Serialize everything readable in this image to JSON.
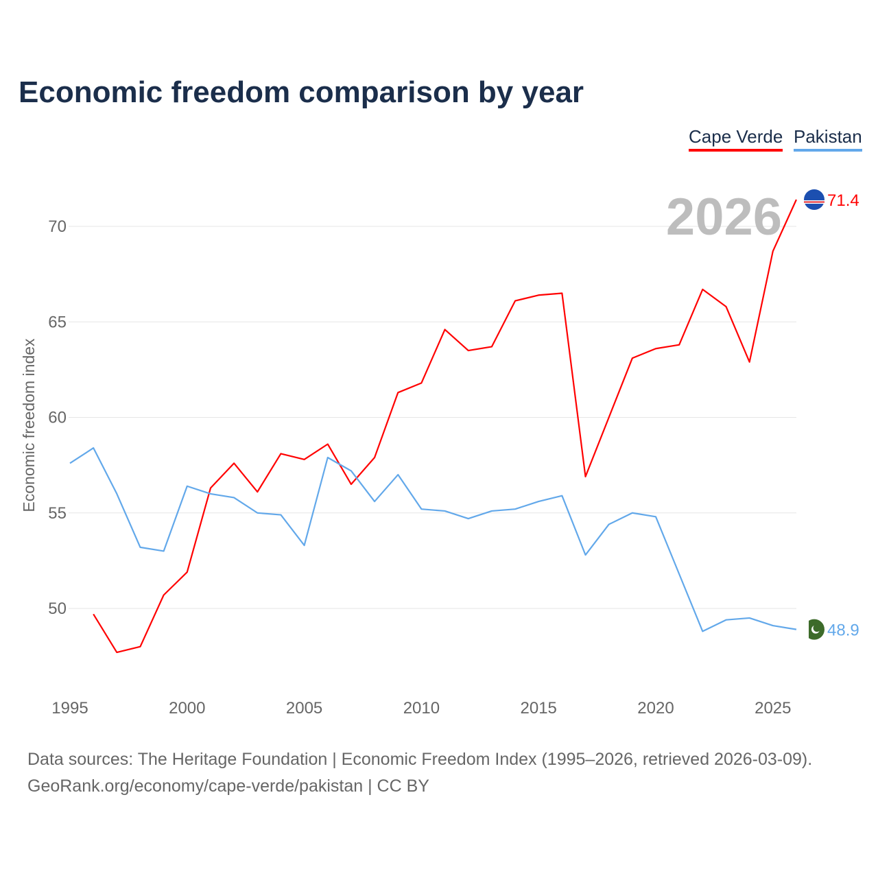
{
  "title": "Economic freedom comparison by year",
  "legend": [
    {
      "name": "Cape Verde",
      "color": "#ff0000"
    },
    {
      "name": "Pakistan",
      "color": "#62a8ea"
    }
  ],
  "source": {
    "line1": "Data sources: The Heritage Foundation | Economic Freedom Index (1995–2026, retrieved 2026-03-09).",
    "line2": "GeoRank.org/economy/cape-verde/pakistan | CC BY"
  },
  "chart_data": {
    "type": "line",
    "title": "Economic freedom comparison by year",
    "xlabel": "",
    "ylabel": "Economic freedom index",
    "year_label": "2026",
    "xlim": [
      1995,
      2026
    ],
    "ylim": [
      45.5,
      72
    ],
    "xticks": [
      1995,
      2000,
      2005,
      2010,
      2015,
      2020,
      2025
    ],
    "yticks": [
      50,
      55,
      60,
      65,
      70
    ],
    "grid": true,
    "legend_position": "top-right",
    "series": [
      {
        "name": "Cape Verde",
        "color": "#ff0000",
        "end_label": "71.4",
        "x": [
          1996,
          1997,
          1998,
          1999,
          2000,
          2001,
          2002,
          2003,
          2004,
          2005,
          2006,
          2007,
          2008,
          2009,
          2010,
          2011,
          2012,
          2013,
          2014,
          2015,
          2016,
          2017,
          2018,
          2019,
          2020,
          2021,
          2022,
          2023,
          2024,
          2025,
          2026
        ],
        "values": [
          49.7,
          47.7,
          48.0,
          50.7,
          51.9,
          56.3,
          57.6,
          56.1,
          58.1,
          57.8,
          58.6,
          56.5,
          57.9,
          61.3,
          61.8,
          64.6,
          63.5,
          63.7,
          66.1,
          66.4,
          66.5,
          56.9,
          60.0,
          63.1,
          63.6,
          63.8,
          66.7,
          65.8,
          62.9,
          68.7,
          71.4
        ]
      },
      {
        "name": "Pakistan",
        "color": "#62a8ea",
        "end_label": "48.9",
        "x": [
          1995,
          1996,
          1997,
          1998,
          1999,
          2000,
          2001,
          2002,
          2003,
          2004,
          2005,
          2006,
          2007,
          2008,
          2009,
          2010,
          2011,
          2012,
          2013,
          2014,
          2015,
          2016,
          2017,
          2018,
          2019,
          2020,
          2021,
          2022,
          2023,
          2024,
          2025,
          2026
        ],
        "values": [
          57.6,
          58.4,
          56.0,
          53.2,
          53.0,
          56.4,
          56.0,
          55.8,
          55.0,
          54.9,
          53.3,
          57.9,
          57.2,
          55.6,
          57.0,
          55.2,
          55.1,
          54.7,
          55.1,
          55.2,
          55.6,
          55.9,
          52.8,
          54.4,
          55.0,
          54.8,
          51.8,
          48.8,
          49.4,
          49.5,
          49.1,
          48.9
        ]
      }
    ]
  }
}
